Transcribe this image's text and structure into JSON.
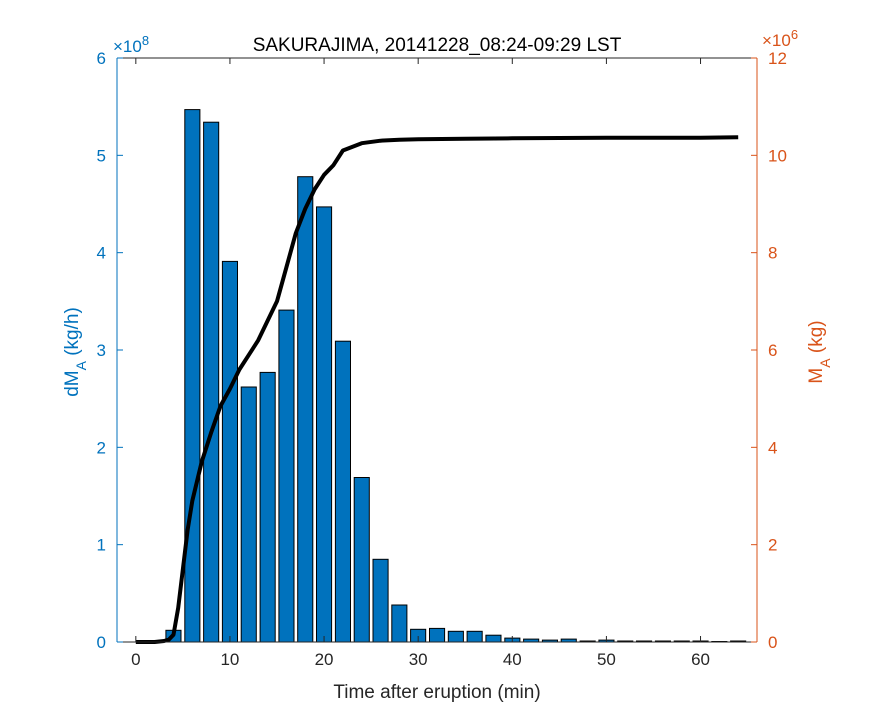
{
  "chart_data": {
    "type": "bar",
    "title": "SAKURAJIMA, 20141228_08:24-09:29 LST",
    "xlabel": "Time after eruption (min)",
    "ylabel_left": {
      "main": "dM",
      "sub": "A",
      "unit": " (kg/h)"
    },
    "ylabel_right": {
      "main": "M",
      "sub": "A",
      "unit": " (kg)"
    },
    "xlim": [
      -2,
      66
    ],
    "xticks": [
      "0",
      "10",
      "20",
      "30",
      "40",
      "50",
      "60"
    ],
    "ylim_left": [
      0,
      6
    ],
    "yticks_left": [
      "0",
      "1",
      "2",
      "3",
      "4",
      "5",
      "6"
    ],
    "left_multiplier": {
      "base": "×10",
      "exp": "8"
    },
    "ylim_right": [
      0,
      12
    ],
    "yticks_right": [
      "0",
      "2",
      "4",
      "6",
      "8",
      "10",
      "12"
    ],
    "right_multiplier": {
      "base": "×10",
      "exp": "6"
    },
    "colors": {
      "bars": "#0072BD",
      "left_axis": "#0072BD",
      "right_axis": "#D95319",
      "line": "#000000",
      "axis": "#262626"
    },
    "bars": {
      "name": "dM_A (kg/h)",
      "x": [
        2,
        4,
        6,
        8,
        10,
        12,
        14,
        16,
        18,
        20,
        22,
        24,
        26,
        28,
        30,
        32,
        34,
        36,
        38,
        40,
        42,
        44,
        46,
        48,
        50,
        52,
        54,
        56,
        58,
        60,
        62,
        64
      ],
      "values": [
        0.01,
        0.12,
        5.47,
        5.34,
        3.91,
        2.62,
        2.77,
        3.41,
        4.78,
        4.47,
        3.09,
        1.69,
        0.85,
        0.38,
        0.13,
        0.14,
        0.11,
        0.11,
        0.07,
        0.04,
        0.03,
        0.02,
        0.03,
        0.01,
        0.02,
        0.01,
        0.01,
        0.01,
        0.01,
        0.01,
        0.005,
        0.01
      ]
    },
    "line": {
      "name": "M_A (kg)",
      "x": [
        0,
        1,
        2,
        3,
        3.5,
        4,
        4.5,
        5,
        5.5,
        6,
        7,
        8,
        9,
        10,
        11,
        12,
        13,
        14,
        15,
        16,
        17,
        18,
        19,
        20,
        21,
        22,
        24,
        26,
        28,
        30,
        35,
        40,
        50,
        60,
        64
      ],
      "values": [
        0,
        0,
        0,
        0.02,
        0.05,
        0.15,
        0.7,
        1.5,
        2.3,
        2.9,
        3.7,
        4.3,
        4.85,
        5.2,
        5.6,
        5.9,
        6.2,
        6.6,
        7.0,
        7.7,
        8.4,
        8.9,
        9.3,
        9.6,
        9.8,
        10.1,
        10.25,
        10.3,
        10.32,
        10.33,
        10.34,
        10.35,
        10.36,
        10.36,
        10.37
      ]
    }
  }
}
